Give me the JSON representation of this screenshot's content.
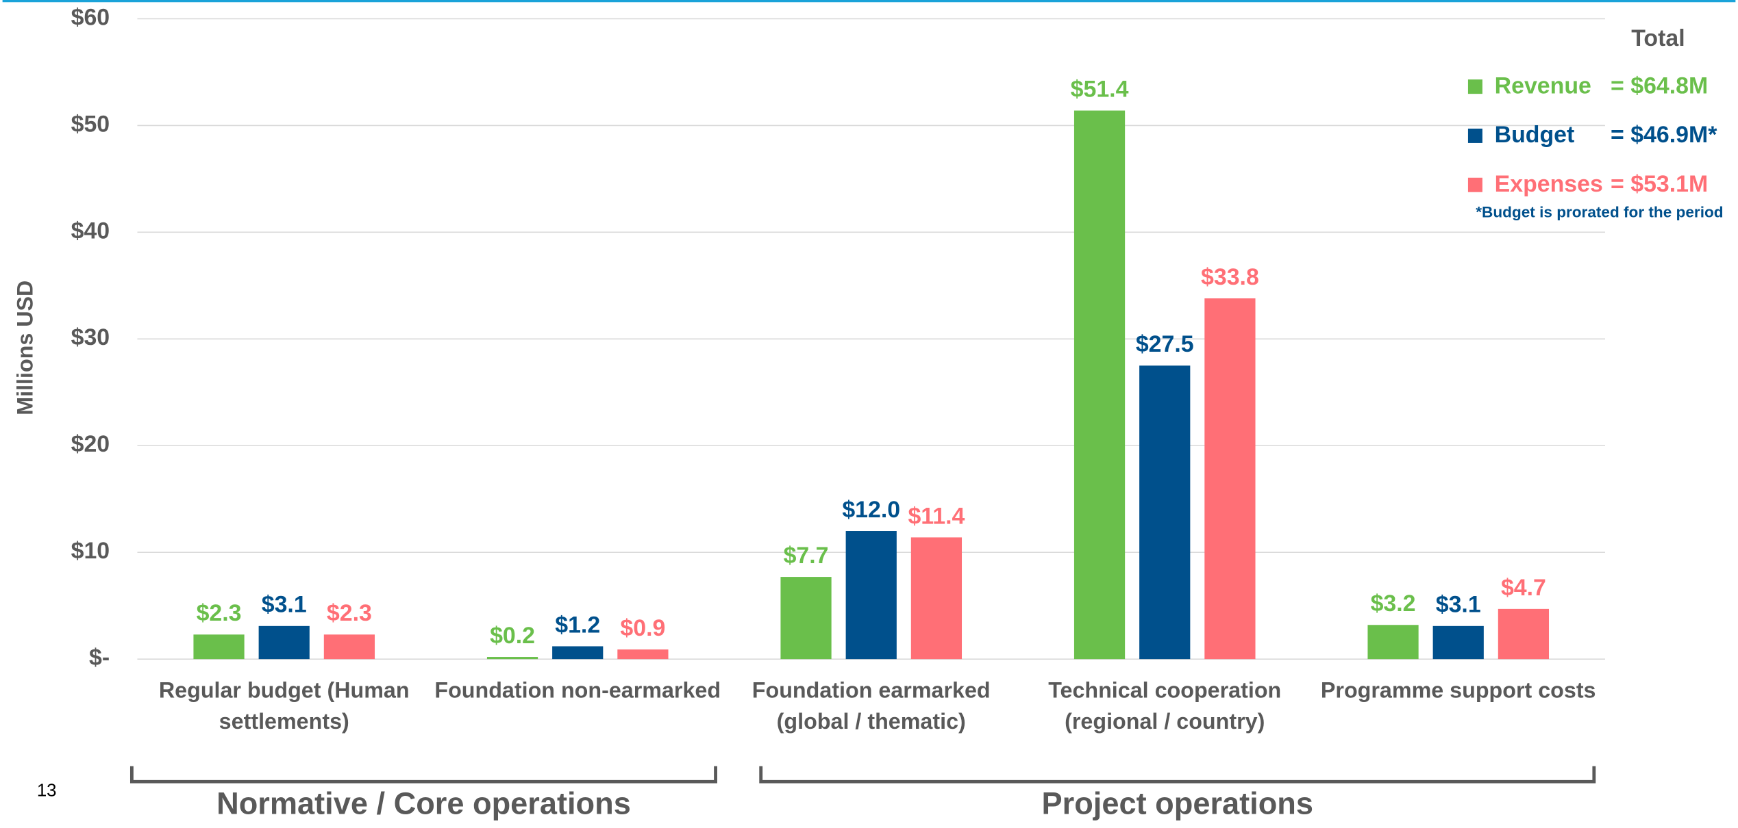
{
  "chart_data": {
    "type": "bar",
    "y_label": "Millions USD",
    "categories": [
      "Regular budget (Human settlements)",
      "Foundation non-earmarked",
      "Foundation earmarked (global / thematic)",
      "Technical cooperation (regional / country)",
      "Programme support costs"
    ],
    "series": [
      {
        "name": "Revenue",
        "color": "#6abf4b",
        "values": [
          2.3,
          0.2,
          7.7,
          51.4,
          3.2
        ],
        "value_labels": [
          "$2.3",
          "$0.2",
          "$7.7",
          "$51.4",
          "$3.2"
        ],
        "total_label": "= $64.8M"
      },
      {
        "name": "Budget",
        "color": "#00508c",
        "values": [
          3.1,
          1.2,
          12.0,
          27.5,
          3.1
        ],
        "value_labels": [
          "$3.1",
          "$1.2",
          "$12.0",
          "$27.5",
          "$3.1"
        ],
        "total_label": "= $46.9M*"
      },
      {
        "name": "Expenses",
        "color": "#ff6f76",
        "values": [
          2.3,
          0.9,
          11.4,
          33.8,
          4.7
        ],
        "value_labels": [
          "$2.3",
          "$0.9",
          "$11.4",
          "$33.8",
          "$4.7"
        ],
        "total_label": "= $53.1M"
      }
    ],
    "ylim": [
      0,
      60
    ],
    "yticks": [
      {
        "value": 0,
        "label": "$-"
      },
      {
        "value": 10,
        "label": "$10"
      },
      {
        "value": 20,
        "label": "$20"
      },
      {
        "value": 30,
        "label": "$30"
      },
      {
        "value": 40,
        "label": "$40"
      },
      {
        "value": 50,
        "label": "$50"
      },
      {
        "value": 60,
        "label": "$60"
      }
    ],
    "grid": true,
    "legend_title": "Total",
    "legend_position": "upper right",
    "legend_note": "*Budget is prorated for the period",
    "groups": [
      {
        "label": "Normative / Core operations",
        "from": 0,
        "to": 1
      },
      {
        "label": "Project operations",
        "from": 2,
        "to": 4
      }
    ]
  },
  "page_number": "13"
}
